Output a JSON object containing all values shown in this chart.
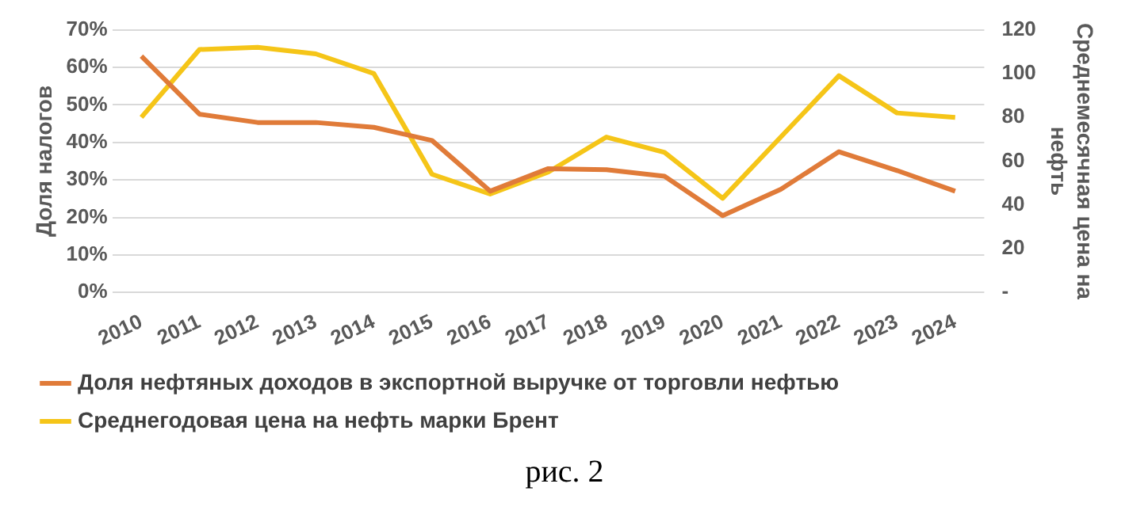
{
  "chart_data": {
    "type": "line",
    "categories": [
      "2010",
      "2011",
      "2012",
      "2013",
      "2014",
      "2015",
      "2016",
      "2017",
      "2018",
      "2019",
      "2020",
      "2021",
      "2022",
      "2023",
      "2024"
    ],
    "series": [
      {
        "name": "Доля нефтяных доходов в экспортной выручке от торговли нефтью",
        "color": "#e07b39",
        "values": [
          63,
          47.5,
          45.3,
          45.3,
          44,
          40.5,
          27,
          33,
          32.7,
          31,
          20.5,
          27.5,
          37.5,
          32.5,
          27
        ]
      },
      {
        "name": "Среднегодовая цена на нефть марки Брент",
        "color": "#f5c518",
        "axis": "y2",
        "values": [
          80,
          111,
          112,
          109,
          100,
          54,
          45,
          55,
          71,
          64,
          43,
          71,
          99,
          82,
          80
        ]
      }
    ],
    "ylabel": "Доля налогов",
    "y2label": "Среднемесячная цена на нефть",
    "ylim": [
      0,
      70
    ],
    "yticks": [
      {
        "value": 0,
        "label": "0%"
      },
      {
        "value": 10,
        "label": "10%"
      },
      {
        "value": 20,
        "label": "20%"
      },
      {
        "value": 30,
        "label": "30%"
      },
      {
        "value": 40,
        "label": "40%"
      },
      {
        "value": 50,
        "label": "50%"
      },
      {
        "value": 60,
        "label": "60%"
      },
      {
        "value": 70,
        "label": "70%"
      }
    ],
    "y2lim": [
      0,
      120
    ],
    "y2ticks": [
      {
        "value": 0,
        "label": "-"
      },
      20,
      40,
      60,
      80,
      100,
      120
    ],
    "grid": "y",
    "legend": "bottom",
    "marker": "none",
    "line_style": "solid",
    "annotations": [
      "рис. 2"
    ]
  }
}
